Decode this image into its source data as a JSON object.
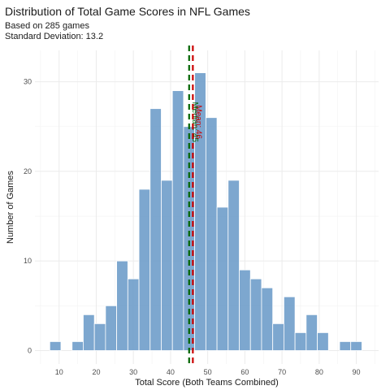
{
  "chart_data": {
    "type": "bar",
    "title": "Distribution of Total Game Scores in NFL Games",
    "subtitle_lines": [
      "Based on 285 games",
      "Standard Deviation: 13.2"
    ],
    "xlabel": "Total Score (Both Teams Combined)",
    "ylabel": "Number of Games",
    "xlim": [
      3.5,
      96
    ],
    "ylim": [
      -1.5,
      33.5
    ],
    "x_ticks": [
      10,
      20,
      30,
      40,
      50,
      60,
      70,
      80,
      90
    ],
    "y_ticks": [
      0,
      10,
      20,
      30
    ],
    "bin_width": 3,
    "bins": [
      {
        "x": 9,
        "count": 1
      },
      {
        "x": 12,
        "count": 0
      },
      {
        "x": 15,
        "count": 1
      },
      {
        "x": 18,
        "count": 4
      },
      {
        "x": 21,
        "count": 3
      },
      {
        "x": 24,
        "count": 5
      },
      {
        "x": 27,
        "count": 10
      },
      {
        "x": 30,
        "count": 8
      },
      {
        "x": 33,
        "count": 18
      },
      {
        "x": 36,
        "count": 27
      },
      {
        "x": 39,
        "count": 19
      },
      {
        "x": 42,
        "count": 29
      },
      {
        "x": 45,
        "count": 25
      },
      {
        "x": 48,
        "count": 31
      },
      {
        "x": 51,
        "count": 26
      },
      {
        "x": 54,
        "count": 16
      },
      {
        "x": 57,
        "count": 19
      },
      {
        "x": 60,
        "count": 9
      },
      {
        "x": 63,
        "count": 8
      },
      {
        "x": 66,
        "count": 7
      },
      {
        "x": 69,
        "count": 3
      },
      {
        "x": 72,
        "count": 6
      },
      {
        "x": 75,
        "count": 2
      },
      {
        "x": 78,
        "count": 4
      },
      {
        "x": 81,
        "count": 2
      },
      {
        "x": 84,
        "count": 0
      },
      {
        "x": 87,
        "count": 1
      },
      {
        "x": 90,
        "count": 1
      }
    ],
    "reference_lines": [
      {
        "value": 45,
        "label": "Median: 45",
        "color": "#006400"
      },
      {
        "value": 46,
        "label": "Mean: 46",
        "color": "#cc0000"
      }
    ],
    "bar_color": "#6b9bc8",
    "grid": true,
    "legend": "none"
  }
}
